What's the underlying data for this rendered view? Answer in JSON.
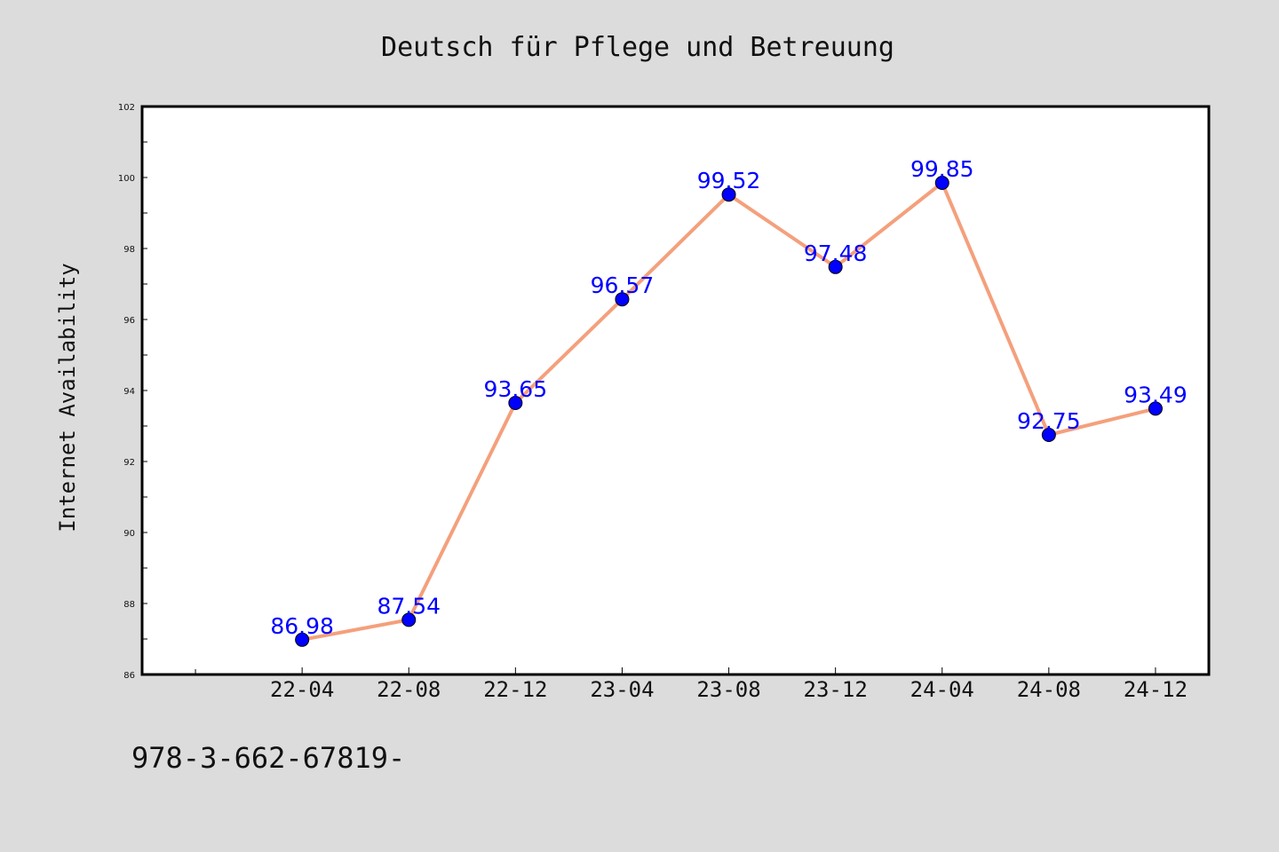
{
  "footer_text": "978-3-662-67819-",
  "colors": {
    "background": "#dcdcdc",
    "plot_area": "#ffffff",
    "line": "#f4a07c",
    "marker": "#0000ff",
    "data_label": "#0000ff"
  },
  "chart_data": {
    "type": "line",
    "title": "Deutsch für Pflege und Betreuung",
    "xlabel": "",
    "ylabel": "Internet Availability",
    "categories": [
      "22-04",
      "22-08",
      "22-12",
      "23-04",
      "23-08",
      "23-12",
      "24-04",
      "24-08",
      "24-12"
    ],
    "x_slots": 10,
    "series": [
      {
        "values": [
          86.98,
          87.54,
          93.65,
          96.57,
          99.52,
          97.48,
          99.85,
          92.75,
          93.49
        ],
        "labels": [
          "86.98",
          "87.54",
          "93.65",
          "96.57",
          "99.52",
          "97.48",
          "99.85",
          "92.75",
          "93.49"
        ]
      }
    ],
    "ylim": [
      86,
      102
    ],
    "yticks": [
      86,
      88,
      90,
      92,
      94,
      96,
      98,
      100,
      102
    ],
    "grid": false,
    "legend": "none"
  }
}
